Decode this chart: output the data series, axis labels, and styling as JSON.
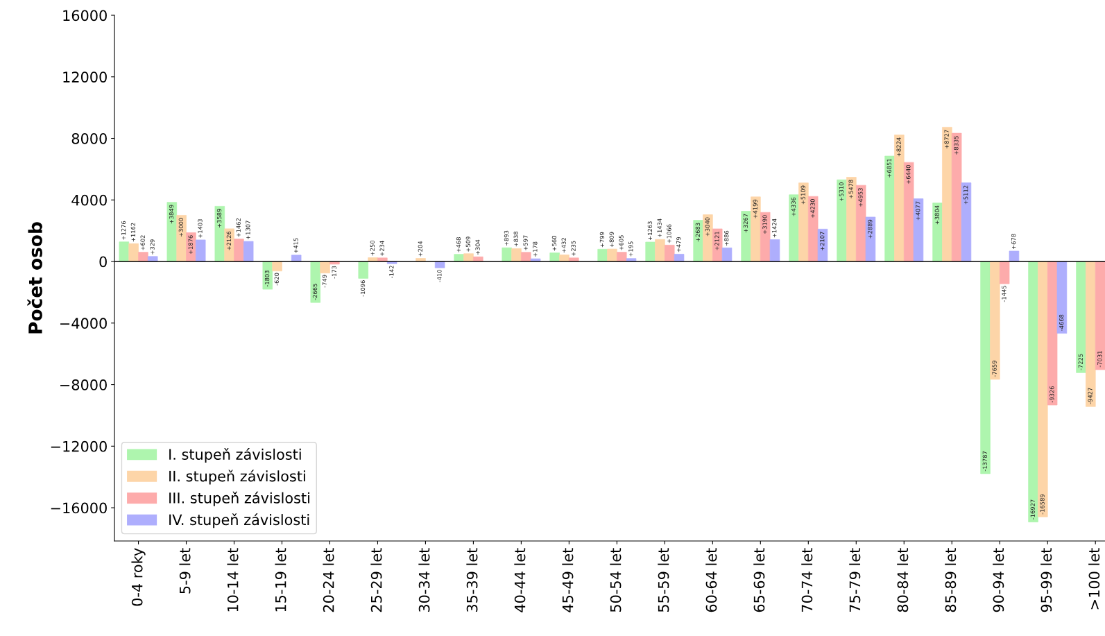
{
  "chart_data": {
    "type": "bar",
    "ylabel": "Počet osob",
    "categories": [
      "0-4 roky",
      "5-9 let",
      "10-14 let",
      "15-19 let",
      "20-24 let",
      "25-29 let",
      "30-34 let",
      "35-39 let",
      "40-44 let",
      "45-49 let",
      "50-54 let",
      "55-59 let",
      "60-64 let",
      "65-69 let",
      "70-74 let",
      "75-79 let",
      "80-84 let",
      "85-89 let",
      "90-94 let",
      "95-99 let",
      ">100 let"
    ],
    "series": [
      {
        "name": "I. stupeň závislosti",
        "color": "#aef5ae",
        "values": [
          1276,
          3849,
          3589,
          -1803,
          -2665,
          -1096,
          null,
          468,
          893,
          560,
          799,
          1263,
          2683,
          3267,
          4336,
          5310,
          6851,
          3804,
          -13787,
          -16927,
          -7225
        ],
        "value_labels": [
          "+1276",
          "+3849",
          "+3589",
          "-1803",
          "-2665",
          "-1096",
          null,
          "+468",
          "+893",
          "+560",
          "+799",
          "+1263",
          "+2683",
          "+3267",
          "+4336",
          "+5310",
          "+6851",
          "+3804",
          "-13787",
          "-16927",
          "-7225"
        ]
      },
      {
        "name": "II. stupeň závislosti",
        "color": "#fdd5a8",
        "values": [
          1162,
          3000,
          2126,
          -620,
          -749,
          250,
          204,
          509,
          838,
          432,
          809,
          1434,
          3040,
          4199,
          5109,
          5478,
          8224,
          8727,
          -7659,
          -16589,
          -9427
        ],
        "value_labels": [
          "+1162",
          "+3000",
          "+2126",
          "-620",
          "-749",
          "+250",
          "+204",
          "+509",
          "+838",
          "+432",
          "+809",
          "+1434",
          "+3040",
          "+4199",
          "+5109",
          "+5478",
          "+8224",
          "+8727",
          "-7659",
          "-16589",
          "-9427"
        ]
      },
      {
        "name": "III. stupeň závislosti",
        "color": "#fdabab",
        "values": [
          602,
          1876,
          1462,
          null,
          -173,
          234,
          null,
          304,
          597,
          235,
          605,
          1066,
          2121,
          3190,
          4230,
          4953,
          6440,
          8335,
          -1445,
          -9326,
          -7031
        ],
        "value_labels": [
          "+602",
          "+1876",
          "+1462",
          null,
          "-173",
          "+234",
          null,
          "+304",
          "+597",
          "+235",
          "+605",
          "+1066",
          "+2121",
          "+3190",
          "+4230",
          "+4953",
          "+6440",
          "+8335",
          "-1445",
          "-9326",
          "-7031"
        ]
      },
      {
        "name": "IV. stupeň závislosti",
        "color": "#aeaefd",
        "values": [
          329,
          1403,
          1307,
          415,
          null,
          -142,
          -410,
          null,
          178,
          null,
          195,
          479,
          886,
          1424,
          2107,
          2889,
          4077,
          5112,
          678,
          -4668,
          null
        ],
        "value_labels": [
          "+329",
          "+1403",
          "+1307",
          "+415",
          null,
          "-142",
          "-410",
          null,
          "+178",
          null,
          "+195",
          "+479",
          "+886",
          "+1424",
          "+2107",
          "+2889",
          "+4077",
          "+5112",
          "+678",
          "-4668",
          null
        ]
      }
    ],
    "ylim": [
      -18160,
      16000
    ],
    "yticks": [
      -16000,
      -12000,
      -8000,
      -4000,
      0,
      4000,
      8000,
      12000,
      16000
    ],
    "legend": "bottom left"
  }
}
